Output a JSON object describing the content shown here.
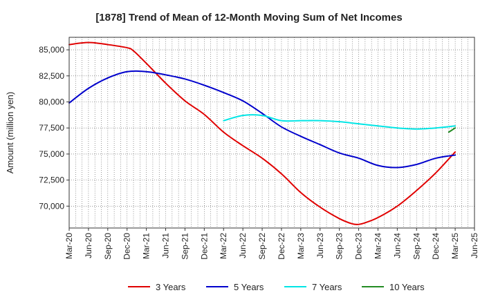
{
  "chart_data": {
    "type": "line",
    "title": "[1878]  Trend of Mean of 12-Month Moving Sum of Net Incomes",
    "xlabel": "",
    "ylabel": "Amount (million yen)",
    "x_ticks": [
      "Mar-20",
      "Jun-20",
      "Sep-20",
      "Dec-20",
      "Mar-21",
      "Jun-21",
      "Sep-21",
      "Dec-21",
      "Mar-22",
      "Jun-22",
      "Sep-22",
      "Dec-22",
      "Mar-23",
      "Jun-23",
      "Sep-23",
      "Dec-23",
      "Mar-24",
      "Jun-24",
      "Sep-24",
      "Dec-24",
      "Mar-25",
      "Jun-25"
    ],
    "y_ticks": [
      "70,000",
      "72,500",
      "75,000",
      "77,500",
      "80,000",
      "82,500",
      "85,000"
    ],
    "y_tick_values": [
      70000,
      72500,
      75000,
      77500,
      80000,
      82500,
      85000
    ],
    "ylim": [
      67900,
      86200
    ],
    "grid": true,
    "legend_position": "bottom",
    "series": [
      {
        "name": "3 Years",
        "color": "#e00000",
        "x": [
          "Mar-20",
          "Jun-20",
          "Sep-20",
          "Dec-20",
          "Jan-21",
          "Mar-21",
          "Jun-21",
          "Sep-21",
          "Dec-21",
          "Mar-22",
          "Jun-22",
          "Sep-22",
          "Dec-22",
          "Mar-23",
          "Jun-23",
          "Sep-23",
          "Nov-23",
          "Dec-23",
          "Jan-24",
          "Mar-24",
          "Jun-24",
          "Sep-24",
          "Dec-24",
          "Mar-25"
        ],
        "values": [
          85500,
          85700,
          85500,
          85200,
          84900,
          83700,
          81800,
          80100,
          78800,
          77100,
          75800,
          74600,
          73100,
          71300,
          69900,
          68800,
          68300,
          68250,
          68400,
          68900,
          70000,
          71500,
          73200,
          75200
        ]
      },
      {
        "name": "5 Years",
        "color": "#0000cc",
        "x": [
          "Mar-20",
          "Jun-20",
          "Sep-20",
          "Dec-20",
          "Mar-21",
          "Jun-21",
          "Sep-21",
          "Dec-21",
          "Mar-22",
          "Jun-22",
          "Sep-22",
          "Dec-22",
          "Mar-23",
          "Jun-23",
          "Sep-23",
          "Dec-23",
          "Mar-24",
          "Jun-24",
          "Sep-24",
          "Dec-24",
          "Mar-25"
        ],
        "values": [
          79900,
          81300,
          82300,
          82900,
          82900,
          82600,
          82200,
          81600,
          80900,
          80100,
          78900,
          77600,
          76700,
          75900,
          75100,
          74600,
          73900,
          73700,
          74000,
          74600,
          74900
        ]
      },
      {
        "name": "7 Years",
        "color": "#00e5e5",
        "x": [
          "Mar-22",
          "Jun-22",
          "Sep-22",
          "Dec-22",
          "Mar-23",
          "Jun-23",
          "Sep-23",
          "Dec-23",
          "Mar-24",
          "Jun-24",
          "Sep-24",
          "Dec-24",
          "Mar-25"
        ],
        "values": [
          78200,
          78700,
          78700,
          78200,
          78200,
          78200,
          78100,
          77900,
          77700,
          77500,
          77400,
          77500,
          77700
        ]
      },
      {
        "name": "10 Years",
        "color": "#228b22",
        "x": [
          "Feb-25",
          "Mar-25"
        ],
        "values": [
          77100,
          77500
        ]
      }
    ]
  }
}
